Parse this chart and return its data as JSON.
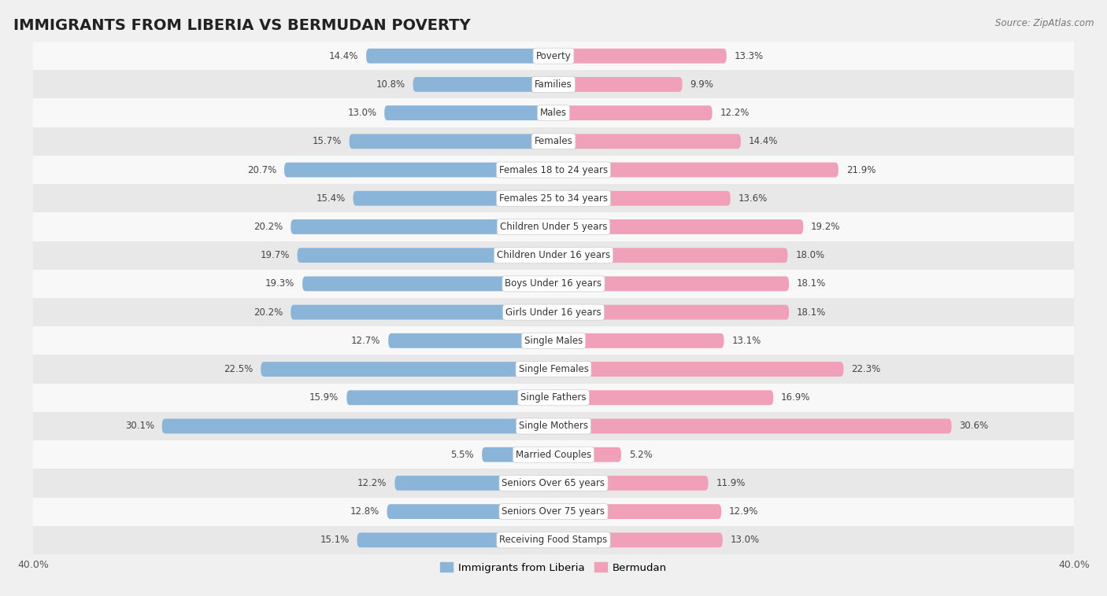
{
  "title": "IMMIGRANTS FROM LIBERIA VS BERMUDAN POVERTY",
  "source": "Source: ZipAtlas.com",
  "categories": [
    "Poverty",
    "Families",
    "Males",
    "Females",
    "Females 18 to 24 years",
    "Females 25 to 34 years",
    "Children Under 5 years",
    "Children Under 16 years",
    "Boys Under 16 years",
    "Girls Under 16 years",
    "Single Males",
    "Single Females",
    "Single Fathers",
    "Single Mothers",
    "Married Couples",
    "Seniors Over 65 years",
    "Seniors Over 75 years",
    "Receiving Food Stamps"
  ],
  "liberia_values": [
    14.4,
    10.8,
    13.0,
    15.7,
    20.7,
    15.4,
    20.2,
    19.7,
    19.3,
    20.2,
    12.7,
    22.5,
    15.9,
    30.1,
    5.5,
    12.2,
    12.8,
    15.1
  ],
  "bermudan_values": [
    13.3,
    9.9,
    12.2,
    14.4,
    21.9,
    13.6,
    19.2,
    18.0,
    18.1,
    18.1,
    13.1,
    22.3,
    16.9,
    30.6,
    5.2,
    11.9,
    12.9,
    13.0
  ],
  "liberia_color": "#8ab4d8",
  "bermudan_color": "#f0a0b8",
  "background_color": "#f0f0f0",
  "row_color_odd": "#e8e8e8",
  "row_color_even": "#f8f8f8",
  "xlim": 40.0,
  "bar_height": 0.52,
  "title_fontsize": 14,
  "label_fontsize": 8.5,
  "value_fontsize": 8.5,
  "tick_fontsize": 9,
  "legend_fontsize": 9.5
}
